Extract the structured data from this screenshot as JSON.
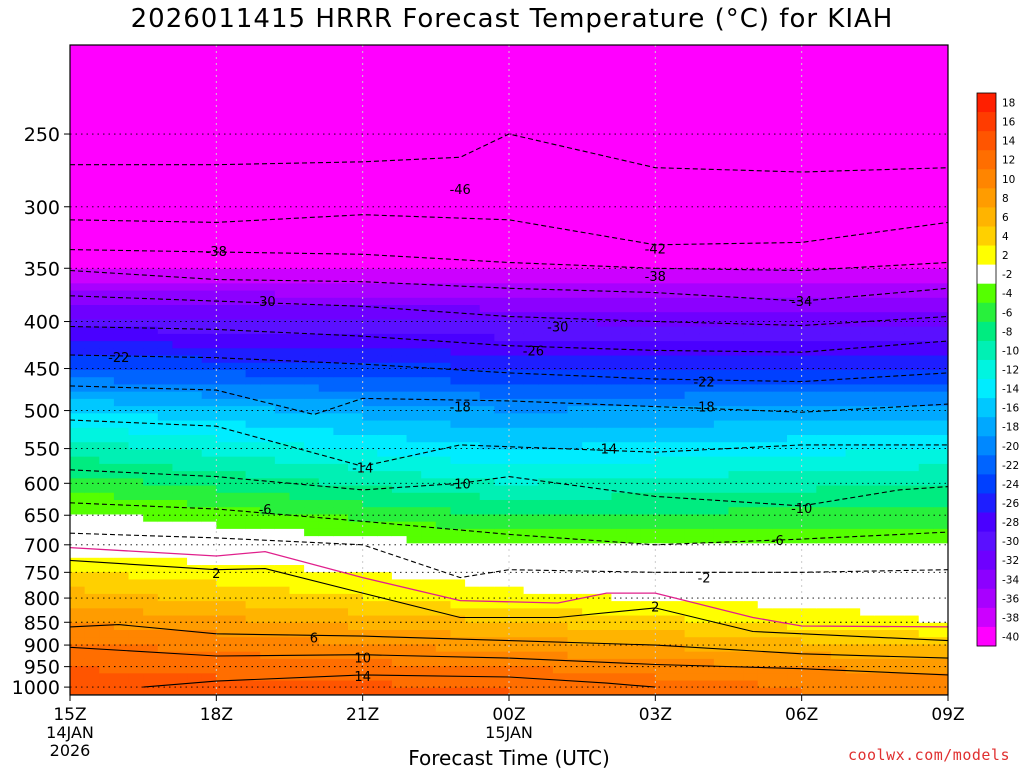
{
  "chart_data": {
    "type": "heatmap",
    "title": "2026011415 HRRR Forecast Temperature (°C) for KIAH",
    "xlabel": "Forecast Time (UTC)",
    "ylabel": "",
    "credit": "coolwx.com/models",
    "x_ticks": [
      {
        "hour": 0,
        "label": "15Z",
        "sub": [
          "14JAN",
          "2026"
        ]
      },
      {
        "hour": 3,
        "label": "18Z",
        "sub": []
      },
      {
        "hour": 6,
        "label": "21Z",
        "sub": []
      },
      {
        "hour": 9,
        "label": "00Z",
        "sub": [
          "15JAN"
        ]
      },
      {
        "hour": 12,
        "label": "03Z",
        "sub": []
      },
      {
        "hour": 15,
        "label": "06Z",
        "sub": []
      },
      {
        "hour": 18,
        "label": "09Z",
        "sub": []
      }
    ],
    "xlim": [
      0,
      18
    ],
    "y_ticks": [
      250,
      300,
      350,
      400,
      450,
      500,
      550,
      600,
      650,
      700,
      750,
      800,
      850,
      900,
      950,
      1000
    ],
    "ylim": [
      1020,
      200
    ],
    "y_scale": "log-pressure (hPa)",
    "colorbar_levels": [
      18,
      16,
      14,
      12,
      10,
      8,
      6,
      4,
      2,
      -2,
      -4,
      -6,
      -8,
      -10,
      -12,
      -14,
      -16,
      -18,
      -20,
      -22,
      -24,
      -26,
      -28,
      -30,
      -32,
      -34,
      -36,
      -38,
      -40
    ],
    "colorbar_colors": [
      "#ff1f00",
      "#ff3c00",
      "#ff5500",
      "#ff6e00",
      "#ff8500",
      "#ff9c00",
      "#ffb400",
      "#ffd000",
      "#ffff00",
      "#ffffff",
      "#55ff00",
      "#28f03c",
      "#00ec80",
      "#00f0b4",
      "#00f4e0",
      "#00ecff",
      "#00c8ff",
      "#00a8ff",
      "#0088ff",
      "#0064ff",
      "#0040ff",
      "#1e1eff",
      "#4a00ff",
      "#5a10ff",
      "#6e00ff",
      "#8c00ff",
      "#a800ff",
      "#cc00ff",
      "#ff00ff"
    ],
    "ground_color": "#a8542a",
    "temperature_profile": {
      "pressure_hPa": [
        200,
        250,
        300,
        350,
        400,
        450,
        500,
        550,
        600,
        650,
        700,
        750,
        800,
        850,
        900,
        950,
        1000
      ],
      "hour_0": [
        -58,
        -51,
        -44,
        -38,
        -29,
        -22,
        -14,
        -9,
        -5,
        -1.5,
        1,
        4,
        7,
        10,
        12.5,
        14,
        15
      ],
      "hour_9": [
        -57,
        -51,
        -45,
        -38,
        -30,
        -24,
        -18,
        -14,
        -10,
        -6,
        -2,
        1,
        2.5,
        6,
        9,
        12,
        14
      ],
      "hour_18": [
        -58,
        -52,
        -44,
        -38,
        -31,
        -24,
        -17,
        -12,
        -8,
        -5,
        -2,
        -1,
        0.5,
        2,
        5.5,
        9,
        11
      ]
    },
    "contour_labels": [
      {
        "label": "-46",
        "hour": 8.0,
        "p": 287
      },
      {
        "label": "-38",
        "hour": 3.0,
        "p": 335
      },
      {
        "label": "-42",
        "hour": 12.0,
        "p": 333
      },
      {
        "label": "-38",
        "hour": 12.0,
        "p": 357
      },
      {
        "label": "-30",
        "hour": 4.0,
        "p": 380
      },
      {
        "label": "-34",
        "hour": 15.0,
        "p": 380
      },
      {
        "label": "-30",
        "hour": 10.0,
        "p": 405
      },
      {
        "label": "-26",
        "hour": 9.5,
        "p": 430
      },
      {
        "label": "-22",
        "hour": 1.0,
        "p": 437
      },
      {
        "label": "-22",
        "hour": 13.0,
        "p": 465
      },
      {
        "label": "-18",
        "hour": 8.0,
        "p": 495
      },
      {
        "label": "-18",
        "hour": 13.0,
        "p": 495
      },
      {
        "label": "-14",
        "hour": 11.0,
        "p": 550
      },
      {
        "label": "-14",
        "hour": 6.0,
        "p": 577
      },
      {
        "label": "-10",
        "hour": 8.0,
        "p": 600
      },
      {
        "label": "-10",
        "hour": 15.0,
        "p": 638
      },
      {
        "label": "-6",
        "hour": 4.0,
        "p": 640
      },
      {
        "label": "-6",
        "hour": 14.5,
        "p": 692
      },
      {
        "label": "2",
        "hour": 3.0,
        "p": 751
      },
      {
        "label": "-2",
        "hour": 13.0,
        "p": 760
      },
      {
        "label": "2",
        "hour": 12.0,
        "p": 817
      },
      {
        "label": "6",
        "hour": 5.0,
        "p": 883
      },
      {
        "label": "10",
        "hour": 6.0,
        "p": 928
      },
      {
        "label": "14",
        "hour": 6.0,
        "p": 972
      }
    ],
    "isotherm_lines": [
      {
        "temp": -46,
        "points": [
          [
            0,
            270
          ],
          [
            3,
            270
          ],
          [
            6,
            268
          ],
          [
            8,
            265
          ],
          [
            9,
            250
          ],
          [
            12,
            272
          ],
          [
            15,
            275
          ],
          [
            18,
            272
          ]
        ]
      },
      {
        "temp": -42,
        "points": [
          [
            0,
            310
          ],
          [
            3,
            312
          ],
          [
            6,
            306
          ],
          [
            9,
            310
          ],
          [
            12,
            330
          ],
          [
            15,
            328
          ],
          [
            18,
            312
          ]
        ]
      },
      {
        "temp": -38,
        "points": [
          [
            0,
            334
          ],
          [
            3,
            336
          ],
          [
            6,
            338
          ],
          [
            9,
            345
          ],
          [
            12,
            350
          ],
          [
            15,
            352
          ],
          [
            18,
            345
          ]
        ]
      },
      {
        "temp": -34,
        "points": [
          [
            0,
            352
          ],
          [
            3,
            360
          ],
          [
            6,
            362
          ],
          [
            9,
            368
          ],
          [
            12,
            372
          ],
          [
            15,
            380
          ],
          [
            18,
            368
          ]
        ]
      },
      {
        "temp": -30,
        "points": [
          [
            0,
            375
          ],
          [
            3,
            380
          ],
          [
            6,
            385
          ],
          [
            9,
            395
          ],
          [
            12,
            400
          ],
          [
            15,
            404
          ],
          [
            18,
            395
          ]
        ]
      },
      {
        "temp": -26,
        "points": [
          [
            0,
            405
          ],
          [
            3,
            408
          ],
          [
            6,
            415
          ],
          [
            9,
            425
          ],
          [
            12,
            430
          ],
          [
            15,
            432
          ],
          [
            18,
            420
          ]
        ]
      },
      {
        "temp": -22,
        "points": [
          [
            0,
            435
          ],
          [
            3,
            438
          ],
          [
            6,
            445
          ],
          [
            9,
            455
          ],
          [
            12,
            462
          ],
          [
            15,
            465
          ],
          [
            18,
            455
          ]
        ]
      },
      {
        "temp": -18,
        "points": [
          [
            0,
            470
          ],
          [
            3,
            475
          ],
          [
            5,
            505
          ],
          [
            6,
            485
          ],
          [
            9,
            488
          ],
          [
            12,
            495
          ],
          [
            15,
            502
          ],
          [
            18,
            492
          ]
        ]
      },
      {
        "temp": -14,
        "points": [
          [
            0,
            512
          ],
          [
            3,
            520
          ],
          [
            6,
            575
          ],
          [
            8,
            545
          ],
          [
            12,
            555
          ],
          [
            15,
            545
          ],
          [
            18,
            545
          ]
        ]
      },
      {
        "temp": -10,
        "points": [
          [
            0,
            580
          ],
          [
            3,
            590
          ],
          [
            6,
            610
          ],
          [
            8,
            600
          ],
          [
            9,
            590
          ],
          [
            12,
            620
          ],
          [
            15,
            635
          ],
          [
            17,
            610
          ],
          [
            18,
            605
          ]
        ]
      },
      {
        "temp": -6,
        "points": [
          [
            0,
            630
          ],
          [
            3,
            640
          ],
          [
            6,
            660
          ],
          [
            9,
            682
          ],
          [
            12,
            700
          ],
          [
            15,
            690
          ],
          [
            18,
            678
          ]
        ]
      },
      {
        "temp": -2,
        "points": [
          [
            0,
            680
          ],
          [
            3,
            688
          ],
          [
            6,
            700
          ],
          [
            8,
            760
          ],
          [
            9,
            745
          ],
          [
            12,
            750
          ],
          [
            15,
            750
          ],
          [
            18,
            745
          ]
        ]
      },
      {
        "temp": 2,
        "points": [
          [
            0,
            728
          ],
          [
            3,
            745
          ],
          [
            4,
            743
          ],
          [
            6,
            790
          ],
          [
            8,
            840
          ],
          [
            10,
            840
          ],
          [
            12,
            820
          ],
          [
            14,
            870
          ],
          [
            18,
            890
          ]
        ]
      },
      {
        "temp": 6,
        "points": [
          [
            0,
            860
          ],
          [
            1,
            855
          ],
          [
            3,
            875
          ],
          [
            6,
            880
          ],
          [
            9,
            890
          ],
          [
            12,
            900
          ],
          [
            15,
            920
          ],
          [
            18,
            930
          ]
        ]
      },
      {
        "temp": 10,
        "points": [
          [
            0,
            905
          ],
          [
            3,
            925
          ],
          [
            6,
            922
          ],
          [
            9,
            930
          ],
          [
            12,
            945
          ],
          [
            15,
            955
          ],
          [
            18,
            970
          ]
        ]
      },
      {
        "temp": 14,
        "points": [
          [
            1.5,
            1000
          ],
          [
            3,
            985
          ],
          [
            6,
            970
          ],
          [
            9,
            975
          ],
          [
            11,
            990
          ],
          [
            12,
            1000
          ]
        ]
      }
    ],
    "freezing_line": [
      [
        0,
        705
      ],
      [
        3,
        720
      ],
      [
        4,
        712
      ],
      [
        6,
        760
      ],
      [
        8,
        805
      ],
      [
        10,
        810
      ],
      [
        11,
        790
      ],
      [
        12,
        790
      ],
      [
        14,
        840
      ],
      [
        15,
        858
      ],
      [
        18,
        860
      ]
    ]
  }
}
